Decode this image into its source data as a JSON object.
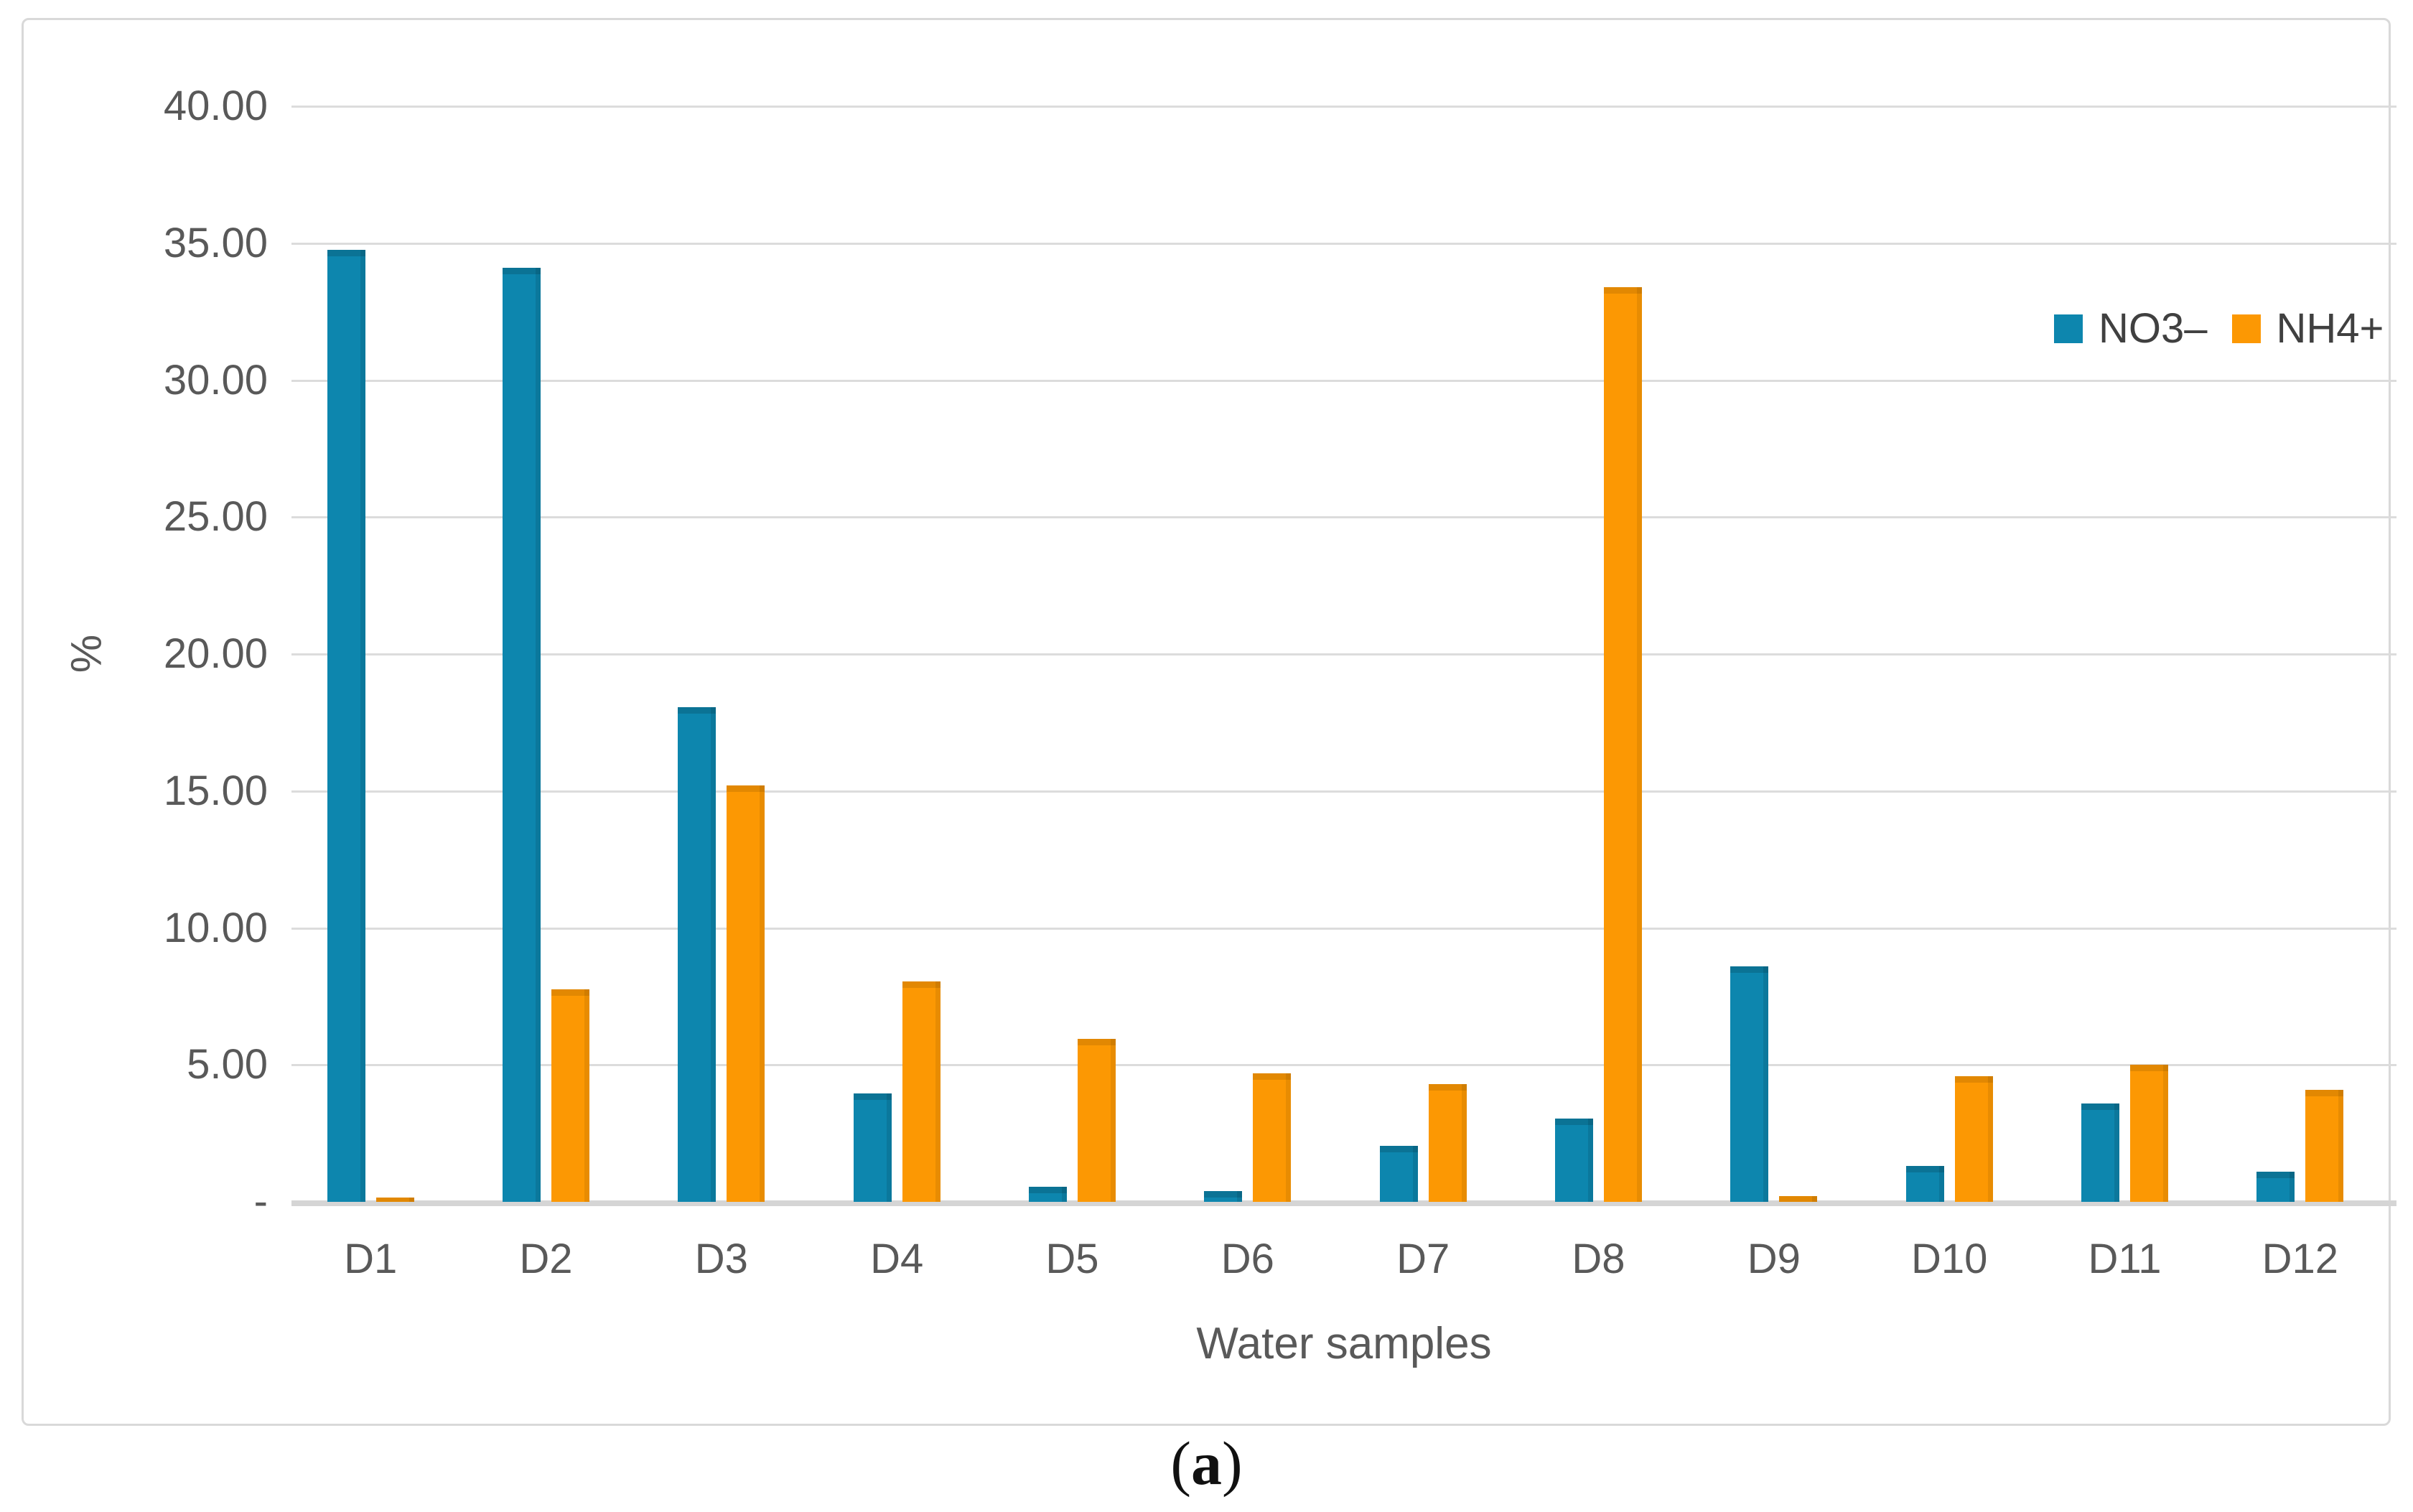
{
  "figure": {
    "caption_open": "(",
    "caption_letter": "a",
    "caption_close": ")"
  },
  "axes": {
    "y_title": "%",
    "x_title": "Water samples",
    "y_tick_labels": [
      "-",
      "5.00",
      "10.00",
      "15.00",
      "20.00",
      "25.00",
      "30.00",
      "35.00",
      "40.00"
    ]
  },
  "legend": {
    "items": [
      {
        "label": "NO3–",
        "color": "#0d86ae"
      },
      {
        "label": "NH4+",
        "color": "#fc9803"
      }
    ]
  },
  "colors": {
    "series_no3": "#0d86ae",
    "series_nh4": "#fc9803",
    "gridline": "#dcdcdc",
    "axis_line": "#d5d5d5",
    "tick_text": "#595959",
    "legend_text": "#404040",
    "frame_border": "#d9d9d9",
    "background": "#ffffff"
  },
  "chart_data": {
    "type": "bar",
    "title": "",
    "xlabel": "Water samples",
    "ylabel": "%",
    "ylim": [
      0,
      40
    ],
    "ytick_step": 5,
    "grid": true,
    "legend_position": "top-right",
    "categories": [
      "D1",
      "D2",
      "D3",
      "D4",
      "D5",
      "D6",
      "D7",
      "D8",
      "D9",
      "D10",
      "D11",
      "D12"
    ],
    "series": [
      {
        "name": "NO3–",
        "color": "#0d86ae",
        "values": [
          34.75,
          34.1,
          18.05,
          3.95,
          0.55,
          0.4,
          2.05,
          3.05,
          8.6,
          1.3,
          3.6,
          1.1
        ]
      },
      {
        "name": "NH4+",
        "color": "#fc9803",
        "values": [
          0.15,
          7.75,
          15.2,
          8.05,
          5.95,
          4.7,
          4.3,
          33.4,
          0.2,
          4.6,
          5.0,
          4.1
        ]
      }
    ]
  }
}
